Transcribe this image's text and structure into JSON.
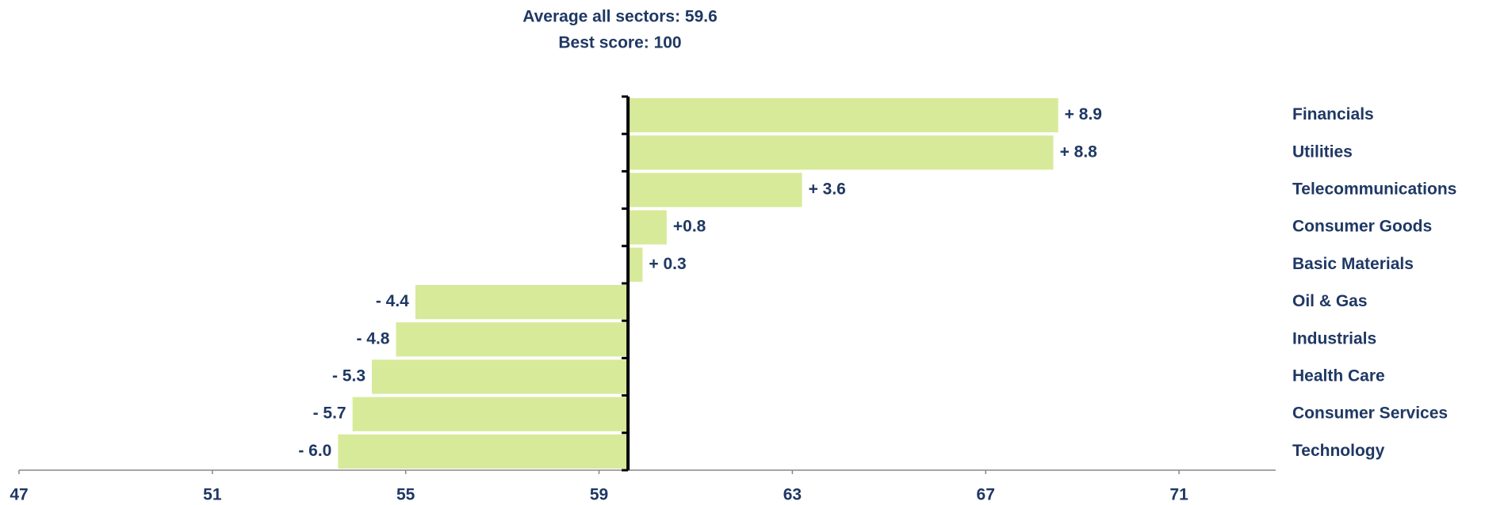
{
  "chart_data": {
    "type": "diverging-bar",
    "title": "Average all sectors: 59.6",
    "subtitle": "Best score: 100",
    "baseline": 59.6,
    "categories": [
      "Financials",
      "Utilities",
      "Telecommunications",
      "Consumer Goods",
      "Basic Materials",
      "Oil & Gas",
      "Industrials",
      "Health Care",
      "Consumer Services",
      "Technology"
    ],
    "values": [
      8.9,
      8.8,
      3.6,
      0.8,
      0.3,
      -4.4,
      -4.8,
      -5.3,
      -5.7,
      -6.0
    ],
    "value_labels": [
      "+ 8.9",
      "+ 8.8",
      "+ 3.6",
      "+0.8",
      "+ 0.3",
      "- 4.4",
      "- 4.8",
      "- 5.3",
      "- 5.7",
      "- 6.0"
    ],
    "color": "#d7ea9a",
    "xlim": [
      47,
      73
    ],
    "xticks": [
      47,
      51,
      55,
      59,
      63,
      67,
      71
    ],
    "grid": false
  }
}
